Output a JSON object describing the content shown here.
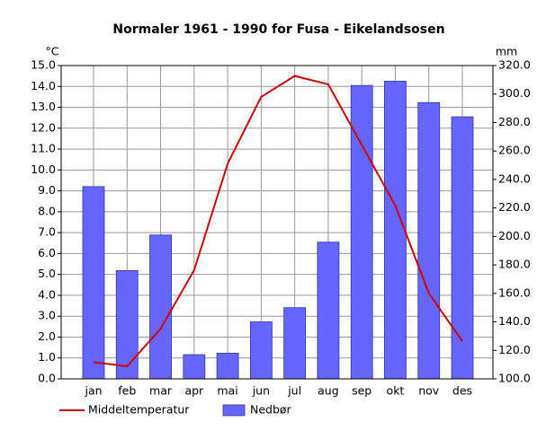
{
  "chart_data": {
    "type": "bar_line",
    "title": "Normaler 1961 - 1990 for Fusa - Eikelandsosen",
    "y_label": "°C",
    "y2_label": "mm",
    "categories": [
      "jan",
      "feb",
      "mar",
      "apr",
      "mai",
      "jun",
      "jul",
      "aug",
      "sep",
      "okt",
      "nov",
      "des"
    ],
    "series": [
      {
        "name": "Middeltemperatur",
        "type": "line",
        "color": "#cc0000",
        "axis": "y",
        "values": [
          0.8,
          0.6,
          2.4,
          5.2,
          10.3,
          13.5,
          14.5,
          14.1,
          11.2,
          8.3,
          4.1,
          1.8
        ]
      },
      {
        "name": "Nedbør",
        "type": "bar",
        "color": "#6666ff",
        "axis": "y2",
        "values": [
          235,
          176,
          201,
          117,
          118,
          140,
          150,
          196,
          306,
          309,
          294,
          284
        ]
      }
    ],
    "ylim": [
      0,
      15
    ],
    "yticks": [
      {
        "value": 0,
        "label": "0.0"
      },
      {
        "value": 1,
        "label": "1.0"
      },
      {
        "value": 2,
        "label": "2.0"
      },
      {
        "value": 3,
        "label": "3.0"
      },
      {
        "value": 4,
        "label": "4.0"
      },
      {
        "value": 5,
        "label": "5.0"
      },
      {
        "value": 6,
        "label": "6.0"
      },
      {
        "value": 7,
        "label": "7.0"
      },
      {
        "value": 8,
        "label": "8.0"
      },
      {
        "value": 9,
        "label": "9.0"
      },
      {
        "value": 10,
        "label": "10.0"
      },
      {
        "value": 11,
        "label": "11.0"
      },
      {
        "value": 12,
        "label": "12.0"
      },
      {
        "value": 13,
        "label": "13.0"
      },
      {
        "value": 14,
        "label": "14.0"
      },
      {
        "value": 15,
        "label": "15.0"
      }
    ],
    "y2lim": [
      100,
      320
    ],
    "y2ticks": [
      {
        "value": 100,
        "label": "100.0"
      },
      {
        "value": 120,
        "label": "120.0"
      },
      {
        "value": 140,
        "label": "140.0"
      },
      {
        "value": 160,
        "label": "160.0"
      },
      {
        "value": 180,
        "label": "180.0"
      },
      {
        "value": 200,
        "label": "200.0"
      },
      {
        "value": 220,
        "label": "220.0"
      },
      {
        "value": 240,
        "label": "240.0"
      },
      {
        "value": 260,
        "label": "260.0"
      },
      {
        "value": 280,
        "label": "280.0"
      },
      {
        "value": 300,
        "label": "300.0"
      },
      {
        "value": 320,
        "label": "320.0"
      }
    ],
    "grid": true
  }
}
